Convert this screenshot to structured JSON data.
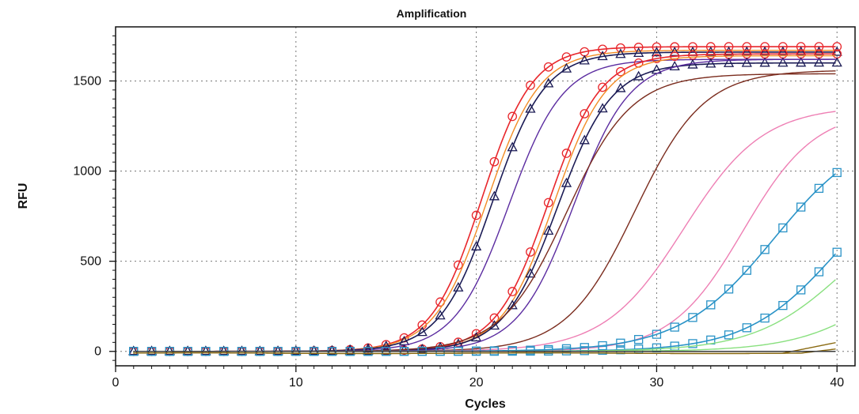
{
  "chart_data": {
    "type": "line",
    "title": "Amplification",
    "xlabel": "Cycles",
    "ylabel": "RFU",
    "xlim": [
      0,
      41
    ],
    "ylim": [
      -80,
      1800
    ],
    "xticks": [
      0,
      10,
      20,
      30,
      40
    ],
    "yticks": [
      0,
      500,
      1000,
      1500
    ],
    "grid": true,
    "legend": "none",
    "series": [
      {
        "curve": "sigmoid",
        "max": 1690,
        "mid": 20.3,
        "slope": 1.4,
        "color": "#e8262b",
        "marker": "circle"
      },
      {
        "curve": "sigmoid",
        "max": 1670,
        "mid": 20.6,
        "slope": 1.45,
        "color": "#f28c24",
        "marker": null
      },
      {
        "curve": "sigmoid",
        "max": 1660,
        "mid": 20.9,
        "slope": 1.45,
        "color": "#1b1b55",
        "marker": "triangle"
      },
      {
        "curve": "sigmoid",
        "max": 1620,
        "mid": 21.8,
        "slope": 1.5,
        "color": "#5b2ca0",
        "marker": null
      },
      {
        "curve": "sigmoid",
        "max": 1650,
        "mid": 24.0,
        "slope": 1.45,
        "color": "#e8262b",
        "marker": "circle"
      },
      {
        "curve": "sigmoid",
        "max": 1640,
        "mid": 24.3,
        "slope": 1.45,
        "color": "#f28c24",
        "marker": null
      },
      {
        "curve": "sigmoid",
        "max": 1600,
        "mid": 24.5,
        "slope": 1.5,
        "color": "#1b1b55",
        "marker": "triangle"
      },
      {
        "curve": "sigmoid",
        "max": 1620,
        "mid": 25.4,
        "slope": 1.55,
        "color": "#5b2ca0",
        "marker": null
      },
      {
        "curve": "sigmoid",
        "max": 1540,
        "mid": 25.0,
        "slope": 1.8,
        "color": "#7b2c1e",
        "marker": null
      },
      {
        "curve": "sigmoid",
        "max": 1560,
        "mid": 28.8,
        "slope": 1.9,
        "color": "#7b2c1e",
        "marker": null
      },
      {
        "curve": "sigmoid",
        "max": 1360,
        "mid": 31.5,
        "slope": 2.2,
        "color": "#ee7fb4",
        "marker": null
      },
      {
        "curve": "sigmoid",
        "max": 1340,
        "mid": 34.8,
        "slope": 2.0,
        "color": "#ee7fb4",
        "marker": null
      },
      {
        "curve": "sigmoid",
        "max": 1250,
        "mid": 36.5,
        "slope": 2.6,
        "color": "#2a93c7",
        "marker": "square"
      },
      {
        "curve": "sigmoid",
        "max": 1100,
        "mid": 40.0,
        "slope": 2.5,
        "color": "#2a93c7",
        "marker": "square"
      },
      {
        "curve": "sigmoid",
        "max": 900,
        "mid": 40.5,
        "slope": 2.5,
        "color": "#89e07f",
        "marker": null
      },
      {
        "curve": "sigmoid",
        "max": 700,
        "mid": 43.2,
        "slope": 2.5,
        "color": "#89e07f",
        "marker": null
      },
      {
        "curve": "linear-tail",
        "start": 37,
        "end": 60,
        "color": "#8a6a12",
        "marker": null
      },
      {
        "curve": "linear-tail",
        "start": 38,
        "end": 24,
        "color": "#8a6a12",
        "marker": null
      },
      {
        "curve": "flat",
        "value": 0,
        "color": "#3b3b3b",
        "marker": null
      }
    ]
  }
}
